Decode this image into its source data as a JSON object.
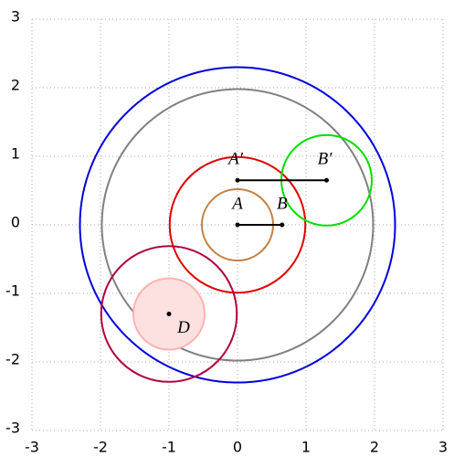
{
  "chart_data": {
    "type": "geometry",
    "xlim": [
      -3,
      3
    ],
    "ylim": [
      -3,
      3
    ],
    "xticks": [
      -3,
      -2,
      -1,
      0,
      1,
      2,
      3
    ],
    "yticks": [
      -3,
      -2,
      -1,
      0,
      1,
      2,
      3
    ],
    "grid": true,
    "circles": [
      {
        "cx": 0,
        "cy": 0,
        "r": 2.3,
        "color": "#0000dd",
        "fill": "none"
      },
      {
        "cx": 0,
        "cy": 0,
        "r": 1.98,
        "color": "#808080",
        "fill": "none"
      },
      {
        "cx": 0,
        "cy": 0,
        "r": 0.99,
        "color": "#e00000",
        "fill": "none"
      },
      {
        "cx": 0,
        "cy": 0,
        "r": 0.52,
        "color": "#c08040",
        "fill": "none"
      },
      {
        "cx": 1.3,
        "cy": 0.65,
        "r": 0.66,
        "color": "#00e000",
        "fill": "none"
      },
      {
        "cx": -1,
        "cy": -1.3,
        "r": 0.99,
        "color": "#b00040",
        "fill": "none"
      },
      {
        "cx": -1,
        "cy": -1.3,
        "r": 0.52,
        "color": "#ffb0b0",
        "fill": "#fde0e0"
      }
    ],
    "segments": [
      {
        "x": [
          0,
          0.65
        ],
        "y": [
          0,
          0
        ],
        "color": "#000000"
      },
      {
        "x": [
          0,
          1.3
        ],
        "y": [
          0.65,
          0.65
        ],
        "color": "#000000"
      }
    ],
    "points": [
      {
        "label": "A",
        "x": 0,
        "y": 0
      },
      {
        "label": "B",
        "x": 0.65,
        "y": 0
      },
      {
        "label": "A′",
        "x": 0,
        "y": 0.65
      },
      {
        "label": "B′",
        "x": 1.3,
        "y": 0.65
      },
      {
        "label": "D",
        "x": -1,
        "y": -1.3
      }
    ]
  }
}
